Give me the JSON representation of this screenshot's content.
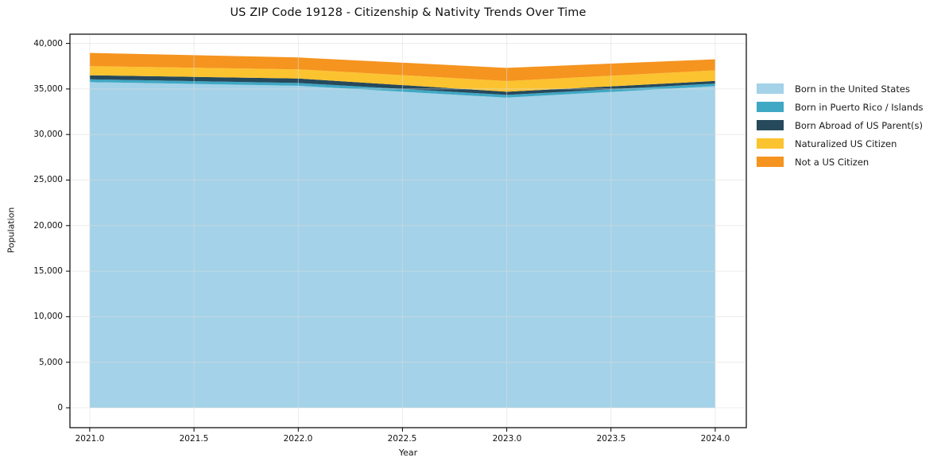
{
  "title": "US ZIP Code 19128 - Citizenship & Nativity Trends Over Time",
  "chart_data": {
    "type": "area",
    "stacked": true,
    "title": "US ZIP Code 19128 - Citizenship & Nativity Trends Over Time",
    "xlabel": "Year",
    "ylabel": "Population",
    "x": [
      2021,
      2022,
      2023,
      2024
    ],
    "series": [
      {
        "name": "Born in the United States",
        "color": "#a4d2e8",
        "values": [
          35750,
          35350,
          34050,
          35300
        ]
      },
      {
        "name": "Born in Puerto Rico / Islands",
        "color": "#3fa8c4",
        "values": [
          300,
          300,
          290,
          290
        ]
      },
      {
        "name": "Born Abroad of US Parent(s)",
        "color": "#26495c",
        "values": [
          450,
          500,
          350,
          290
        ]
      },
      {
        "name": "Naturalized US Citizen",
        "color": "#fcc330",
        "values": [
          1000,
          1000,
          1170,
          1160
        ]
      },
      {
        "name": "Not a US Citizen",
        "color": "#f5941f",
        "values": [
          1450,
          1300,
          1450,
          1210
        ]
      }
    ],
    "stack_totals": [
      38950,
      38450,
      37310,
      38250
    ],
    "x_tick_labels": [
      "2021.0",
      "2021.5",
      "2022.0",
      "2022.5",
      "2023.0",
      "2023.5",
      "2024.0"
    ],
    "x_tick_values": [
      2021,
      2021.5,
      2022,
      2022.5,
      2023,
      2023.5,
      2024
    ],
    "y_tick_labels": [
      "0",
      "5,000",
      "10,000",
      "15,000",
      "20,000",
      "25,000",
      "30,000",
      "35,000",
      "40,000"
    ],
    "y_tick_values": [
      0,
      5000,
      10000,
      15000,
      20000,
      25000,
      30000,
      35000,
      40000
    ],
    "xlim": [
      2020.905,
      2024.149
    ],
    "ylim": [
      -2180,
      41010
    ],
    "grid": true,
    "grid_color": "#dcdcdc",
    "axis_color": "#000000",
    "legend_position": "right"
  }
}
